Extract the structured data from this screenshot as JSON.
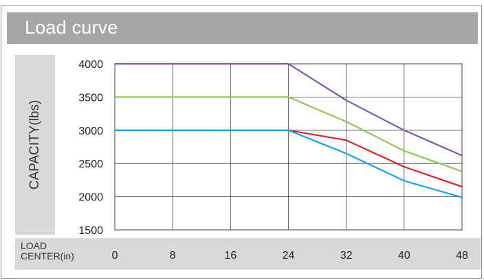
{
  "chart_data": {
    "type": "line",
    "title": "Load curve",
    "ylabel": "CAPACITY(lbs)",
    "xlabel": "LOAD\nCENTER(in)",
    "categories": [
      0,
      8,
      16,
      24,
      32,
      40,
      48
    ],
    "xlim": [
      0,
      48
    ],
    "ylim": [
      1500,
      4000
    ],
    "yticks": [
      1500,
      2000,
      2500,
      3000,
      3500,
      4000
    ],
    "grid": true,
    "series": [
      {
        "color": "#7e57a8",
        "values": [
          4000,
          4000,
          4000,
          4000,
          3450,
          3000,
          2620
        ]
      },
      {
        "color": "#92c84a",
        "values": [
          3500,
          3500,
          3500,
          3500,
          3130,
          2690,
          2380
        ]
      },
      {
        "color": "#e02026",
        "values": [
          3000,
          3000,
          3000,
          3000,
          2850,
          2450,
          2150
        ]
      },
      {
        "color": "#1aa3e8",
        "values": [
          3000,
          3000,
          3000,
          3000,
          2650,
          2240,
          1990
        ]
      }
    ]
  }
}
